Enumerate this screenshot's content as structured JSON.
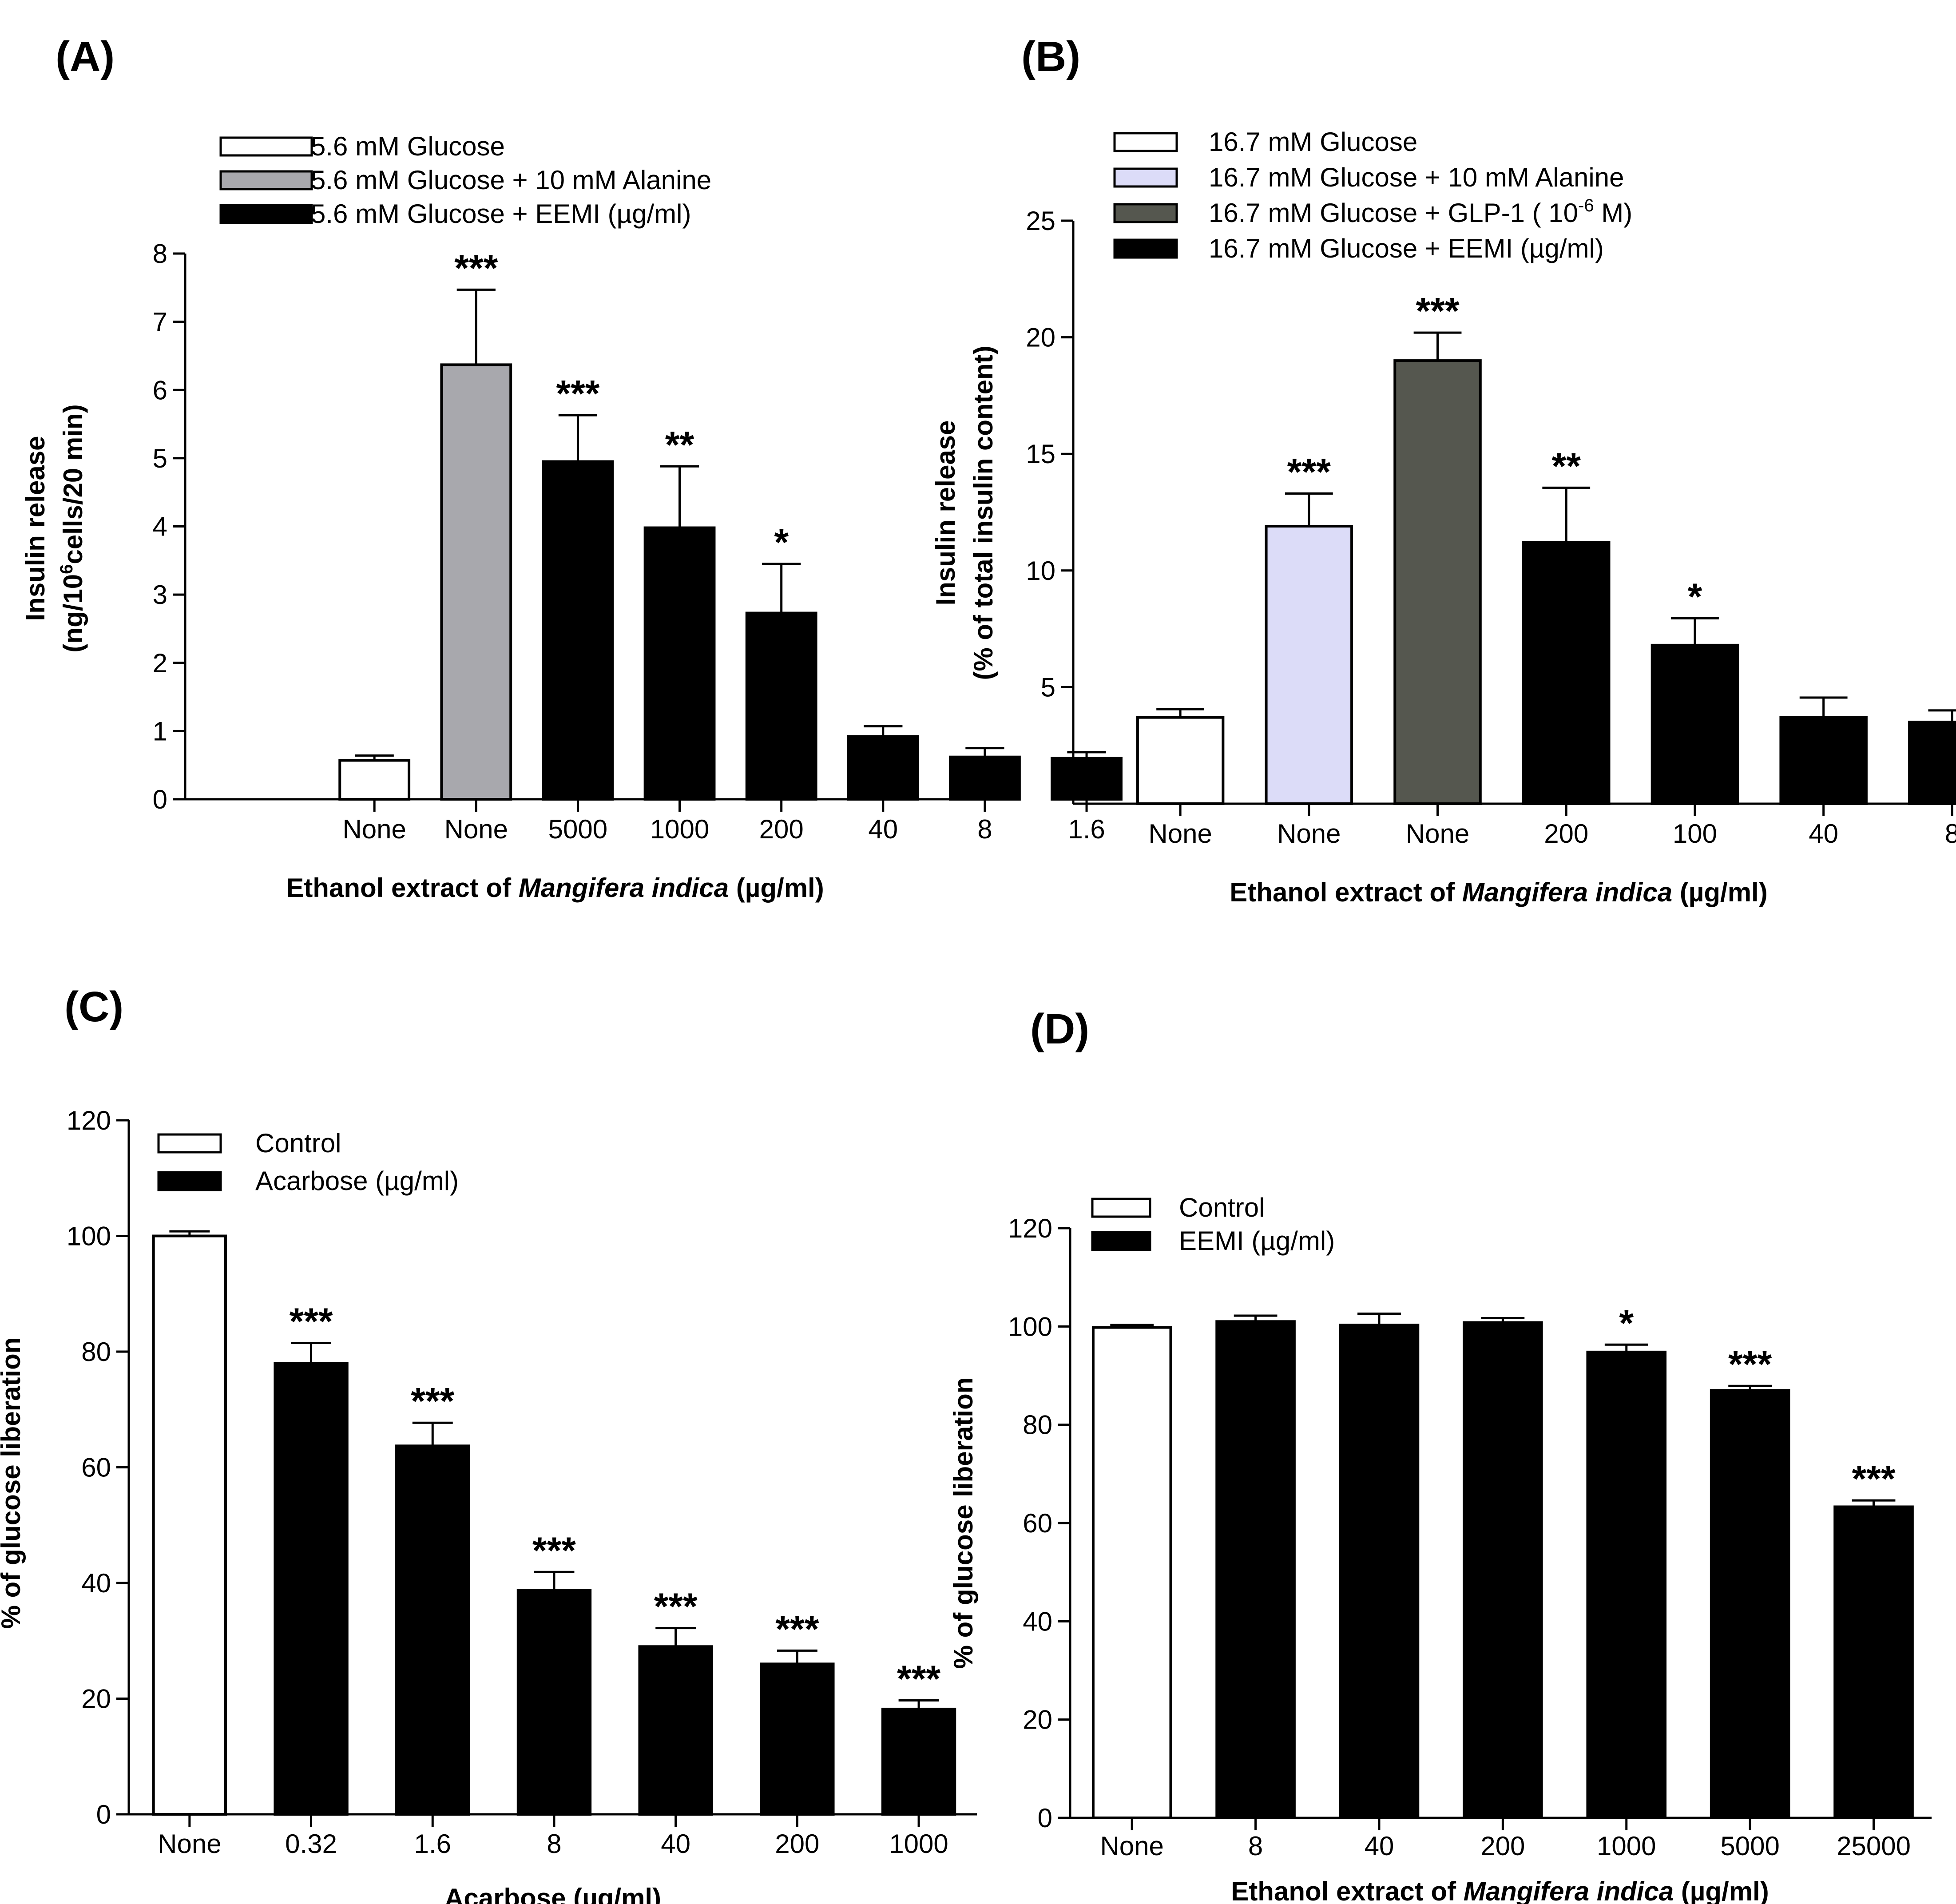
{
  "chart_data": [
    {
      "panel": "(A)",
      "type": "bar",
      "categories": [
        "None",
        "None",
        "5000",
        "1000",
        "200",
        "40",
        "8",
        "1.6"
      ],
      "values": [
        0.57,
        6.37,
        4.95,
        3.98,
        2.73,
        0.92,
        0.62,
        0.6
      ],
      "errors": [
        0.07,
        1.1,
        0.68,
        0.9,
        0.72,
        0.15,
        0.13,
        0.09
      ],
      "groups": [
        0,
        1,
        2,
        2,
        2,
        2,
        2,
        2
      ],
      "significance": [
        "",
        "***",
        "***",
        "**",
        "*",
        "",
        "",
        ""
      ],
      "legend": [
        {
          "label": "5.6 mM Glucose",
          "color": "#ffffff"
        },
        {
          "label": "5.6 mM Glucose + 10 mM Alanine",
          "color": "#a8a8ad"
        },
        {
          "label": "5.6 mM Glucose + EEMI (µg/ml)",
          "color": "#000000"
        }
      ],
      "ylabel_line1": "Insulin release",
      "ylabel_line2_a": "(ng/10",
      "ylabel_line2_sup": "6",
      "ylabel_line2_b": "cells/20 min)",
      "xlabel_a": "Ethanol extract of ",
      "xlabel_italic": "Mangifera indica",
      "xlabel_b": " (µg/ml)",
      "ylim": [
        0,
        8
      ],
      "yticks": [
        0,
        1,
        2,
        3,
        4,
        5,
        6,
        7,
        8
      ]
    },
    {
      "panel": "(B)",
      "type": "bar",
      "categories": [
        "None",
        "None",
        "None",
        "200",
        "100",
        "40",
        "8"
      ],
      "values": [
        3.7,
        11.9,
        19,
        11.2,
        6.8,
        3.7,
        3.5
      ],
      "errors": [
        0.35,
        1.4,
        1.2,
        2.35,
        1.15,
        0.85,
        0.5
      ],
      "groups": [
        0,
        1,
        2,
        3,
        3,
        3,
        3
      ],
      "significance": [
        "",
        "***",
        "***",
        "**",
        "*",
        "",
        ""
      ],
      "legend": [
        {
          "label": "16.7 mM Glucose",
          "color": "#ffffff"
        },
        {
          "label": "16.7 mM Glucose + 10 mM Alanine",
          "color": "#dcdcf8"
        },
        {
          "label": "16.7 mM Glucose  + GLP-1 ( 10",
          "sup": "-6",
          "tail": " M)",
          "color": "#55574f"
        },
        {
          "label": "16.7 mM Glucose + EEMI (µg/ml)",
          "color": "#000000"
        }
      ],
      "ylabel_line1": "Insulin release",
      "ylabel_line2": "(% of total  insulin content)",
      "xlabel_a": "Ethanol extract of ",
      "xlabel_italic": "Mangifera indica",
      "xlabel_b": " (µg/ml)",
      "ylim": [
        0,
        25
      ],
      "yticks": [
        5,
        10,
        15,
        20,
        25
      ]
    },
    {
      "panel": "(C)",
      "type": "bar",
      "categories": [
        "None",
        "0.32",
        "1.6",
        "8",
        "40",
        "200",
        "1000"
      ],
      "values": [
        100,
        78,
        63.7,
        38.7,
        29,
        26,
        18.2
      ],
      "errors": [
        0.8,
        3.5,
        4,
        3.2,
        3.2,
        2.3,
        1.5
      ],
      "groups": [
        0,
        1,
        1,
        1,
        1,
        1,
        1
      ],
      "significance": [
        "",
        "***",
        "***",
        "***",
        "***",
        "***",
        "***"
      ],
      "legend": [
        {
          "label": "Control",
          "color": "#ffffff"
        },
        {
          "label": "Acarbose  (µg/ml)",
          "color": "#000000"
        }
      ],
      "ylabel_line1": "% of glucose liberation",
      "xlabel_a": "Acarbose  (µg/ml)",
      "ylim": [
        0,
        120
      ],
      "yticks": [
        0,
        20,
        40,
        60,
        80,
        100,
        120
      ]
    },
    {
      "panel": "(D)",
      "type": "bar",
      "categories": [
        "None",
        "8",
        "40",
        "200",
        "1000",
        "5000",
        "25000"
      ],
      "values": [
        99.8,
        101,
        100.3,
        100.8,
        94.8,
        87,
        63.3
      ],
      "errors": [
        0.5,
        1.2,
        2.3,
        0.9,
        1.5,
        0.9,
        1.3
      ],
      "groups": [
        0,
        1,
        1,
        1,
        1,
        1,
        1
      ],
      "significance": [
        "",
        "",
        "",
        "",
        "*",
        "***",
        "***"
      ],
      "legend": [
        {
          "label": "Control",
          "color": "#ffffff"
        },
        {
          "label": "EEMI (µg/ml)",
          "color": "#000000"
        }
      ],
      "ylabel_line1": "% of glucose liberation",
      "xlabel_a": "Ethanol extract of ",
      "xlabel_italic": "Mangifera indica",
      "xlabel_b": " (µg/ml)",
      "ylim": [
        0,
        120
      ],
      "yticks": [
        0,
        20,
        40,
        60,
        80,
        100,
        120
      ]
    }
  ]
}
